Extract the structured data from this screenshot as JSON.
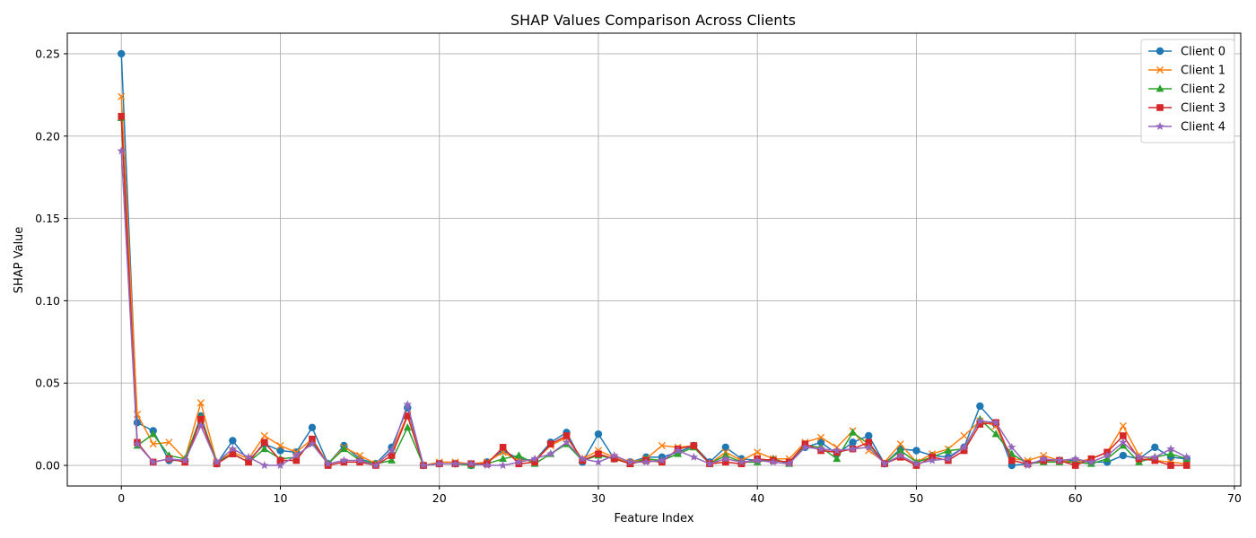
{
  "chart_data": {
    "type": "line",
    "title": "SHAP Values Comparison Across Clients",
    "xlabel": "Feature Index",
    "ylabel": "SHAP Value",
    "xlim": [
      -3.4,
      70.4
    ],
    "ylim": [
      -0.0125,
      0.2625
    ],
    "xticks": [
      0,
      10,
      20,
      30,
      40,
      50,
      60,
      70
    ],
    "yticks": [
      0.0,
      0.05,
      0.1,
      0.15,
      0.2,
      0.25
    ],
    "ytick_labels": [
      "0.00",
      "0.05",
      "0.10",
      "0.15",
      "0.20",
      "0.25"
    ],
    "grid": true,
    "legend_position": "top-right",
    "x": [
      0,
      1,
      2,
      3,
      4,
      5,
      6,
      7,
      8,
      9,
      10,
      11,
      12,
      13,
      14,
      15,
      16,
      17,
      18,
      19,
      20,
      21,
      22,
      23,
      24,
      25,
      26,
      27,
      28,
      29,
      30,
      31,
      32,
      33,
      34,
      35,
      36,
      37,
      38,
      39,
      40,
      41,
      42,
      43,
      44,
      45,
      46,
      47,
      48,
      49,
      50,
      51,
      52,
      53,
      54,
      55,
      56,
      57,
      58,
      59,
      60,
      61,
      62,
      63,
      64,
      65,
      66,
      67
    ],
    "series": [
      {
        "name": "Client 0",
        "color": "#1f77b4",
        "marker": "circle",
        "values": [
          0.25,
          0.026,
          0.021,
          0.003,
          0.003,
          0.03,
          0.001,
          0.015,
          0.003,
          0.013,
          0.009,
          0.008,
          0.023,
          0.001,
          0.012,
          0.004,
          0.001,
          0.011,
          0.035,
          0.0,
          0.001,
          0.001,
          0.0,
          0.002,
          0.009,
          0.004,
          0.003,
          0.014,
          0.02,
          0.002,
          0.019,
          0.004,
          0.002,
          0.005,
          0.005,
          0.008,
          0.012,
          0.002,
          0.011,
          0.004,
          0.003,
          0.003,
          0.002,
          0.011,
          0.014,
          0.007,
          0.014,
          0.018,
          0.001,
          0.01,
          0.009,
          0.006,
          0.005,
          0.011,
          0.036,
          0.025,
          0.0,
          0.001,
          0.003,
          0.003,
          0.003,
          0.002,
          0.002,
          0.006,
          0.004,
          0.011,
          0.005,
          0.004
        ]
      },
      {
        "name": "Client 1",
        "color": "#ff7f0e",
        "marker": "x",
        "values": [
          0.224,
          0.031,
          0.013,
          0.014,
          0.004,
          0.038,
          0.002,
          0.008,
          0.004,
          0.018,
          0.012,
          0.008,
          0.016,
          0.001,
          0.011,
          0.006,
          0.001,
          0.008,
          0.031,
          0.0,
          0.002,
          0.002,
          0.001,
          0.002,
          0.008,
          0.003,
          0.003,
          0.012,
          0.017,
          0.004,
          0.009,
          0.005,
          0.002,
          0.004,
          0.012,
          0.011,
          0.012,
          0.001,
          0.008,
          0.003,
          0.008,
          0.004,
          0.004,
          0.014,
          0.017,
          0.011,
          0.021,
          0.009,
          0.002,
          0.013,
          0.002,
          0.007,
          0.01,
          0.018,
          0.027,
          0.024,
          0.004,
          0.003,
          0.006,
          0.003,
          0.002,
          0.004,
          0.008,
          0.024,
          0.006,
          0.003,
          0.002,
          0.001
        ]
      },
      {
        "name": "Client 2",
        "color": "#2ca02c",
        "marker": "triangle",
        "values": [
          0.211,
          0.012,
          0.019,
          0.006,
          0.004,
          0.029,
          0.002,
          0.007,
          0.002,
          0.01,
          0.004,
          0.005,
          0.014,
          0.001,
          0.01,
          0.003,
          0.001,
          0.003,
          0.023,
          0.0,
          0.001,
          0.001,
          0.0,
          0.001,
          0.004,
          0.006,
          0.001,
          0.007,
          0.013,
          0.003,
          0.006,
          0.004,
          0.001,
          0.004,
          0.003,
          0.007,
          0.011,
          0.001,
          0.006,
          0.002,
          0.002,
          0.004,
          0.001,
          0.012,
          0.011,
          0.004,
          0.02,
          0.013,
          0.001,
          0.009,
          0.002,
          0.005,
          0.009,
          0.01,
          0.028,
          0.019,
          0.007,
          0.001,
          0.002,
          0.002,
          0.002,
          0.001,
          0.004,
          0.012,
          0.002,
          0.005,
          0.007,
          0.004
        ]
      },
      {
        "name": "Client 3",
        "color": "#d62728",
        "marker": "square",
        "values": [
          0.212,
          0.014,
          0.002,
          0.004,
          0.002,
          0.028,
          0.001,
          0.007,
          0.002,
          0.014,
          0.003,
          0.003,
          0.016,
          0.0,
          0.002,
          0.002,
          0.0,
          0.006,
          0.03,
          0.0,
          0.001,
          0.001,
          0.001,
          0.001,
          0.011,
          0.001,
          0.002,
          0.013,
          0.018,
          0.003,
          0.007,
          0.004,
          0.001,
          0.003,
          0.002,
          0.01,
          0.012,
          0.001,
          0.002,
          0.001,
          0.004,
          0.003,
          0.002,
          0.013,
          0.009,
          0.008,
          0.01,
          0.014,
          0.001,
          0.005,
          0.0,
          0.005,
          0.003,
          0.009,
          0.025,
          0.026,
          0.003,
          0.001,
          0.003,
          0.003,
          0.0,
          0.004,
          0.008,
          0.018,
          0.004,
          0.003,
          0.0,
          0.0
        ]
      },
      {
        "name": "Client 4",
        "color": "#9467bd",
        "marker": "star",
        "values": [
          0.191,
          0.013,
          0.002,
          0.004,
          0.003,
          0.024,
          0.002,
          0.01,
          0.005,
          0.0,
          0.0,
          0.006,
          0.013,
          0.001,
          0.003,
          0.003,
          0.0,
          0.009,
          0.037,
          0.0,
          0.001,
          0.001,
          0.001,
          0.0,
          0.0,
          0.002,
          0.004,
          0.007,
          0.014,
          0.004,
          0.002,
          0.006,
          0.002,
          0.002,
          0.003,
          0.009,
          0.005,
          0.001,
          0.004,
          0.002,
          0.003,
          0.002,
          0.001,
          0.011,
          0.01,
          0.009,
          0.01,
          0.011,
          0.001,
          0.006,
          0.001,
          0.003,
          0.004,
          0.011,
          0.027,
          0.026,
          0.011,
          0.0,
          0.004,
          0.003,
          0.004,
          0.002,
          0.006,
          0.014,
          0.005,
          0.005,
          0.01,
          0.005
        ]
      }
    ]
  }
}
